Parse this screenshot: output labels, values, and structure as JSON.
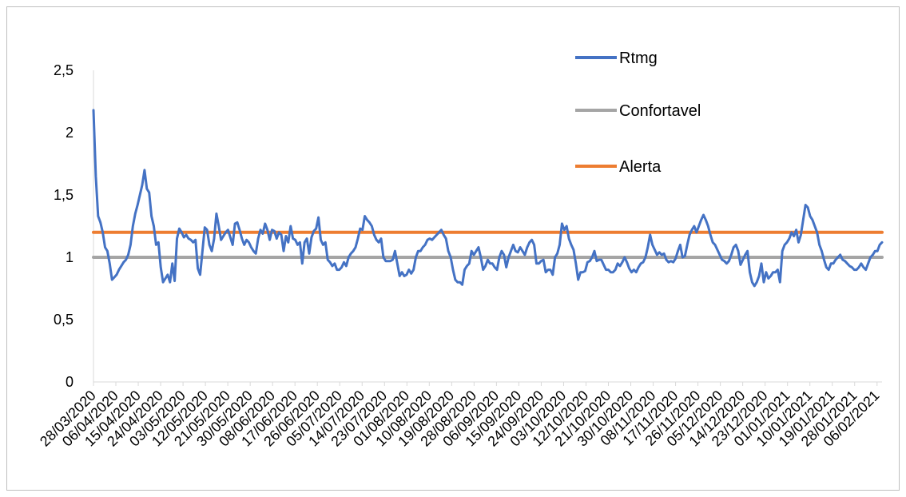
{
  "chart_data": {
    "type": "line",
    "title": "",
    "xlabel": "",
    "ylabel": "",
    "ylim": [
      0,
      2.5
    ],
    "yticks": [
      "0",
      "0,5",
      "1",
      "1,5",
      "2",
      "2,5"
    ],
    "x_tick_labels": [
      "28/03/2020",
      "06/04/2020",
      "15/04/2020",
      "24/04/2020",
      "03/05/2020",
      "12/05/2020",
      "21/05/2020",
      "30/05/2020",
      "08/06/2020",
      "17/06/2020",
      "26/06/2020",
      "05/07/2020",
      "14/07/2020",
      "23/07/2020",
      "01/08/2020",
      "10/08/2020",
      "19/08/2020",
      "28/08/2020",
      "06/09/2020",
      "15/09/2020",
      "24/09/2020",
      "03/10/2020",
      "12/10/2020",
      "21/10/2020",
      "30/10/2020",
      "08/11/2020",
      "17/11/2020",
      "26/11/2020",
      "05/12/2020",
      "14/12/2020",
      "23/12/2020",
      "01/01/2021",
      "10/01/2021",
      "19/01/2021",
      "28/01/2021",
      "06/02/2021"
    ],
    "x_start": "28/03/2020",
    "x_end": "08/02/2021",
    "legend_position": "top-right",
    "series": [
      {
        "name": "Rtmg",
        "color": "#4472C4",
        "values": [
          2.18,
          1.65,
          1.33,
          1.28,
          1.2,
          1.08,
          1.05,
          0.95,
          0.82,
          0.84,
          0.86,
          0.9,
          0.93,
          0.96,
          0.98,
          1.02,
          1.1,
          1.25,
          1.35,
          1.42,
          1.5,
          1.58,
          1.7,
          1.55,
          1.52,
          1.33,
          1.25,
          1.1,
          1.12,
          0.92,
          0.8,
          0.83,
          0.86,
          0.8,
          0.95,
          0.81,
          1.15,
          1.23,
          1.2,
          1.16,
          1.18,
          1.15,
          1.14,
          1.12,
          1.14,
          0.91,
          0.86,
          1.05,
          1.24,
          1.22,
          1.1,
          1.05,
          1.15,
          1.35,
          1.25,
          1.14,
          1.17,
          1.2,
          1.22,
          1.16,
          1.1,
          1.27,
          1.28,
          1.22,
          1.15,
          1.1,
          1.14,
          1.12,
          1.08,
          1.05,
          1.03,
          1.15,
          1.22,
          1.19,
          1.27,
          1.22,
          1.14,
          1.22,
          1.21,
          1.15,
          1.2,
          1.18,
          1.05,
          1.17,
          1.12,
          1.25,
          1.15,
          1.14,
          1.1,
          1.12,
          0.95,
          1.12,
          1.15,
          1.03,
          1.16,
          1.21,
          1.23,
          1.32,
          1.14,
          1.1,
          1.12,
          0.98,
          0.96,
          0.93,
          0.95,
          0.9,
          0.9,
          0.92,
          0.96,
          0.93,
          1.0,
          1.03,
          1.05,
          1.08,
          1.15,
          1.23,
          1.22,
          1.33,
          1.3,
          1.28,
          1.25,
          1.18,
          1.14,
          1.12,
          1.15,
          1.0,
          0.97,
          0.97,
          0.97,
          0.98,
          1.05,
          0.95,
          0.85,
          0.88,
          0.85,
          0.86,
          0.9,
          0.87,
          0.9,
          1.0,
          1.05,
          1.05,
          1.08,
          1.1,
          1.14,
          1.15,
          1.14,
          1.16,
          1.18,
          1.2,
          1.22,
          1.18,
          1.15,
          1.05,
          1.0,
          0.9,
          0.82,
          0.8,
          0.8,
          0.78,
          0.9,
          0.93,
          0.95,
          1.05,
          1.02,
          1.05,
          1.08,
          1.0,
          0.9,
          0.93,
          0.98,
          0.95,
          0.95,
          0.92,
          0.9,
          1.0,
          1.05,
          1.02,
          0.92,
          1.0,
          1.05,
          1.1,
          1.05,
          1.04,
          1.08,
          1.05,
          1.02,
          1.08,
          1.12,
          1.14,
          1.1,
          0.95,
          0.95,
          0.97,
          0.98,
          0.88,
          0.9,
          0.9,
          0.86,
          1.0,
          1.03,
          1.1,
          1.27,
          1.22,
          1.25,
          1.15,
          1.1,
          1.06,
          0.95,
          0.82,
          0.88,
          0.88,
          0.89,
          0.96,
          0.97,
          1.0,
          1.05,
          0.97,
          0.98,
          0.98,
          0.94,
          0.9,
          0.9,
          0.88,
          0.88,
          0.9,
          0.95,
          0.93,
          0.96,
          1.0,
          0.96,
          0.91,
          0.88,
          0.9,
          0.88,
          0.92,
          0.95,
          0.96,
          1.0,
          1.08,
          1.18,
          1.1,
          1.06,
          1.02,
          1.04,
          1.02,
          1.03,
          0.98,
          0.96,
          0.97,
          0.96,
          0.99,
          1.05,
          1.1,
          1.0,
          1.01,
          1.1,
          1.18,
          1.22,
          1.25,
          1.2,
          1.25,
          1.3,
          1.34,
          1.3,
          1.25,
          1.18,
          1.12,
          1.1,
          1.06,
          1.02,
          0.98,
          0.97,
          0.95,
          0.97,
          1.02,
          1.08,
          1.1,
          1.05,
          0.94,
          0.98,
          1.02,
          1.05,
          0.88,
          0.8,
          0.77,
          0.8,
          0.85,
          0.95,
          0.8,
          0.88,
          0.83,
          0.85,
          0.88,
          0.88,
          0.9,
          0.8,
          1.05,
          1.1,
          1.12,
          1.15,
          1.2,
          1.17,
          1.22,
          1.12,
          1.18,
          1.3,
          1.42,
          1.4,
          1.33,
          1.3,
          1.25,
          1.2,
          1.1,
          1.05,
          0.98,
          0.92,
          0.9,
          0.95,
          0.95,
          0.98,
          1.0,
          1.02,
          0.98,
          0.97,
          0.95,
          0.93,
          0.92,
          0.9,
          0.9,
          0.92,
          0.95,
          0.92,
          0.9,
          0.95,
          1.0,
          1.02,
          1.05,
          1.05,
          1.1,
          1.12
        ]
      },
      {
        "name": "Confortavel",
        "color": "#A5A5A5",
        "values": [
          1,
          1
        ]
      },
      {
        "name": "Alerta",
        "color": "#ED7D31",
        "values": [
          1.2,
          1.2
        ]
      }
    ]
  }
}
